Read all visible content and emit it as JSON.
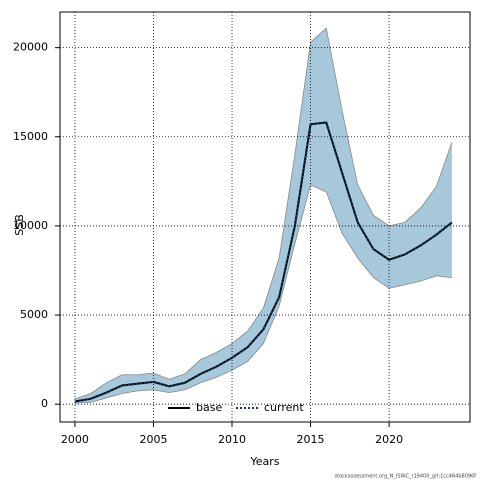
{
  "chart_data": {
    "type": "line",
    "x_label": "Years",
    "y_label": "SSB",
    "x": [
      2000,
      2001,
      2002,
      2003,
      2004,
      2005,
      2006,
      2007,
      2008,
      2009,
      2010,
      2011,
      2012,
      2013,
      2014,
      2015,
      2016,
      2017,
      2018,
      2019,
      2020,
      2021,
      2022,
      2023,
      2024
    ],
    "series": [
      {
        "name": "base",
        "color": "#000000",
        "style": "solid",
        "values": [
          150,
          300,
          650,
          1050,
          1150,
          1250,
          1000,
          1200,
          1700,
          2100,
          2600,
          3200,
          4200,
          6000,
          10000,
          15700,
          15800,
          13000,
          10200,
          8700,
          8100,
          8400,
          8900,
          9500,
          10200
        ]
      },
      {
        "name": "current",
        "color": "#0b3a5c",
        "style": "dotted",
        "values": [
          150,
          300,
          650,
          1050,
          1150,
          1250,
          1000,
          1200,
          1700,
          2100,
          2600,
          3200,
          4200,
          6000,
          10000,
          15700,
          15800,
          13000,
          10200,
          8700,
          8100,
          8400,
          8900,
          9500,
          10200
        ]
      }
    ],
    "band": {
      "color": "#a6c8da",
      "upper": [
        300,
        600,
        1200,
        1650,
        1650,
        1750,
        1400,
        1700,
        2500,
        2900,
        3400,
        4100,
        5400,
        8200,
        14000,
        20300,
        21100,
        16500,
        12300,
        10600,
        10000,
        10200,
        11000,
        12200,
        14700
      ],
      "lower": [
        50,
        100,
        350,
        600,
        750,
        800,
        650,
        800,
        1200,
        1500,
        1900,
        2400,
        3400,
        5500,
        9000,
        12300,
        11900,
        9600,
        8200,
        7100,
        6500,
        6700,
        6900,
        7200,
        7100
      ]
    },
    "xlim": [
      1999.05,
      2025.15
    ],
    "xticks": [
      2000,
      2005,
      2010,
      2015,
      2020
    ],
    "ylim": [
      -1000,
      22000
    ],
    "yticks": [
      0,
      5000,
      10000,
      15000,
      20000
    ],
    "grid": true,
    "legend": "bottom",
    "annotation": "stockassessment.org_N_ISWC_r19400_git:1cc464b8096f"
  }
}
